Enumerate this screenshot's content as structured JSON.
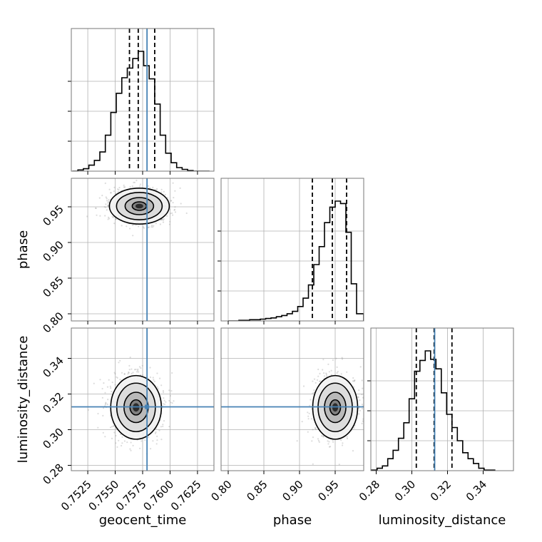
{
  "chart_data": {
    "type": "corner",
    "parameters": [
      {
        "name": "geocent_time",
        "range": [
          0.751,
          0.764
        ],
        "ticks": [
          0.7525,
          0.755,
          0.7575,
          0.76,
          0.7625
        ],
        "tick_labels": [
          "0.7525",
          "0.7550",
          "0.7575",
          "0.7600",
          "0.7625"
        ],
        "truth": 0.7579,
        "quantiles": [
          0.7563,
          0.7571,
          0.7586
        ]
      },
      {
        "name": "phase",
        "range": [
          0.79,
          0.99
        ],
        "ticks": [
          0.8,
          0.85,
          0.9,
          0.95
        ],
        "tick_labels": [
          "0.80",
          "0.85",
          "0.90",
          "0.95"
        ],
        "truth": null,
        "quantiles": [
          0.918,
          0.946,
          0.966
        ]
      },
      {
        "name": "luminosity_distance",
        "range": [
          0.277,
          0.357
        ],
        "ticks": [
          0.28,
          0.3,
          0.32,
          0.34
        ],
        "tick_labels": [
          "0.28",
          "0.30",
          "0.32",
          "0.34"
        ],
        "truth": 0.3128,
        "quantiles": [
          0.3025,
          0.3125,
          0.3225
        ]
      }
    ],
    "histograms": [
      {
        "param": "geocent_time",
        "bin_edges": [
          0.7511,
          0.7516,
          0.7521,
          0.7526,
          0.7531,
          0.7536,
          0.7541,
          0.7546,
          0.7551,
          0.7556,
          0.7561,
          0.7566,
          0.7571,
          0.7576,
          0.7581,
          0.7586,
          0.7591,
          0.7596,
          0.7601,
          0.7606,
          0.7611,
          0.7616,
          0.7621,
          0.7626,
          0.7631,
          0.7636
        ],
        "counts": [
          0,
          0.01,
          0.02,
          0.05,
          0.09,
          0.16,
          0.3,
          0.49,
          0.65,
          0.78,
          0.86,
          0.94,
          1.0,
          0.88,
          0.77,
          0.56,
          0.3,
          0.15,
          0.07,
          0.03,
          0.015,
          0.005,
          0,
          0,
          0
        ]
      },
      {
        "param": "phase",
        "bin_edges": [
          0.8,
          0.8075,
          0.815,
          0.8225,
          0.83,
          0.8375,
          0.845,
          0.8525,
          0.86,
          0.8675,
          0.875,
          0.8825,
          0.89,
          0.8975,
          0.905,
          0.9125,
          0.92,
          0.9275,
          0.935,
          0.9425,
          0.95,
          0.9575,
          0.965,
          0.9725,
          0.98,
          0.99
        ],
        "counts": [
          0,
          0,
          0.005,
          0.005,
          0.01,
          0.01,
          0.015,
          0.02,
          0.025,
          0.035,
          0.045,
          0.06,
          0.08,
          0.12,
          0.19,
          0.3,
          0.47,
          0.62,
          0.82,
          0.95,
          1.0,
          0.98,
          0.74,
          0.31,
          0.06
        ]
      },
      {
        "param": "luminosity_distance",
        "bin_edges": [
          0.2775,
          0.2805,
          0.2835,
          0.2865,
          0.2895,
          0.2925,
          0.2955,
          0.2985,
          0.3015,
          0.3045,
          0.3075,
          0.3105,
          0.3135,
          0.3165,
          0.3195,
          0.3225,
          0.3255,
          0.3285,
          0.3315,
          0.3345,
          0.3375,
          0.3405,
          0.3435,
          0.3465
        ],
        "counts": [
          0.005,
          0.02,
          0.04,
          0.1,
          0.17,
          0.27,
          0.4,
          0.6,
          0.83,
          0.92,
          1.0,
          0.93,
          0.85,
          0.65,
          0.47,
          0.36,
          0.25,
          0.15,
          0.1,
          0.06,
          0.02,
          0.005,
          0.005
        ]
      }
    ],
    "panels_2d": [
      {
        "x": "geocent_time",
        "y": "phase",
        "center": [
          0.7572,
          0.951
        ],
        "spread": [
          0.0013,
          0.012
        ],
        "contour_radii": [
          0.5,
          1.0,
          1.6,
          2.1
        ]
      },
      {
        "x": "geocent_time",
        "y": "luminosity_distance",
        "center": [
          0.7569,
          0.3125
        ],
        "spread": [
          0.0011,
          0.0085
        ],
        "contour_radii": [
          0.5,
          1.0,
          1.6,
          2.1
        ]
      },
      {
        "x": "phase",
        "y": "luminosity_distance",
        "center": [
          0.95,
          0.3125
        ],
        "spread": [
          0.015,
          0.0085
        ],
        "contour_radii": [
          0.5,
          1.0,
          1.6,
          2.1
        ]
      }
    ],
    "truth_color": "#4682b4"
  }
}
